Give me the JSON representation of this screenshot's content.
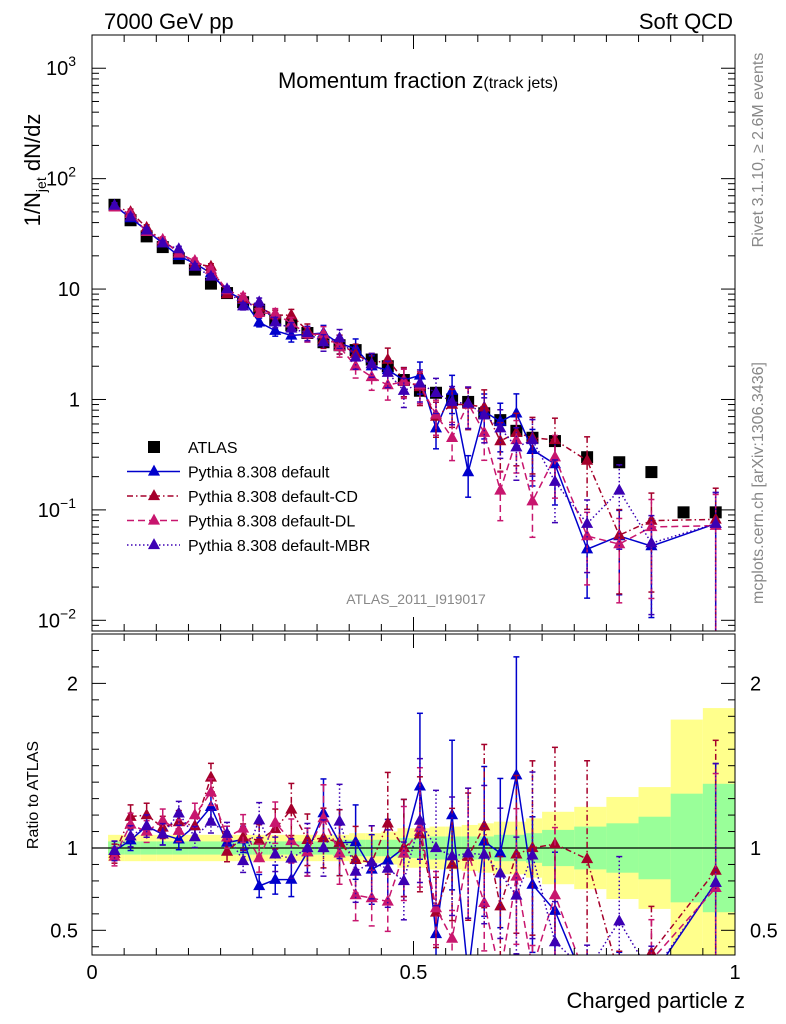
{
  "header": {
    "energy_label": "7000 GeV pp",
    "category_label": "Soft QCD",
    "right_side_rivet": "Rivet 3.1.10, ≥ 2.6M events",
    "right_side_source": "mcplots.cern.ch [arXiv:1306.3436]"
  },
  "chart_data": [
    {
      "type": "scatter",
      "panel": "main",
      "title": "Momentum fraction z(track jets)",
      "title_main": "Momentum fraction ",
      "title_z": "z",
      "title_sub": "(track jets)",
      "ylabel": "1/N_jet dN/dz",
      "ylabel_prefix": "1/N",
      "ylabel_sub": "jet",
      "ylabel_suffix": " dN/dz",
      "ylog": true,
      "ylim": [
        0.008,
        2000
      ],
      "xlim": [
        0,
        1
      ],
      "yticks": [
        {
          "v": 1000,
          "base": "10",
          "exp": "3"
        },
        {
          "v": 100,
          "base": "10",
          "exp": "2"
        },
        {
          "v": 10,
          "base": "10",
          "exp": ""
        },
        {
          "v": 1,
          "base": "1",
          "exp": ""
        },
        {
          "v": 0.1,
          "base": "10",
          "exp": "−1"
        },
        {
          "v": 0.01,
          "base": "10",
          "exp": "−2"
        }
      ],
      "watermark": "ATLAS_2011_I919017",
      "legend_position": "middle-left",
      "series": [
        {
          "name": "ATLAS",
          "color": "#000000",
          "style": "markers",
          "x": [
            0.035,
            0.06,
            0.085,
            0.11,
            0.135,
            0.16,
            0.185,
            0.21,
            0.235,
            0.26,
            0.285,
            0.31,
            0.335,
            0.36,
            0.385,
            0.41,
            0.435,
            0.46,
            0.485,
            0.51,
            0.535,
            0.56,
            0.585,
            0.61,
            0.635,
            0.66,
            0.685,
            0.72,
            0.77,
            0.82,
            0.87,
            0.92,
            0.97
          ],
          "y": [
            58,
            42,
            30,
            24,
            19,
            15,
            11.2,
            9.2,
            7.6,
            6.5,
            5.2,
            4.7,
            4.0,
            3.3,
            3.1,
            2.8,
            2.3,
            2.0,
            1.5,
            1.2,
            1.15,
            1.0,
            0.95,
            0.75,
            0.65,
            0.52,
            0.45,
            0.42,
            0.3,
            0.27,
            0.22,
            0.095,
            0.095
          ]
        },
        {
          "name": "Pythia 8.308 default",
          "color": "#0000cc",
          "style": "solid",
          "x": [
            0.035,
            0.06,
            0.085,
            0.11,
            0.135,
            0.16,
            0.185,
            0.21,
            0.235,
            0.26,
            0.285,
            0.31,
            0.335,
            0.36,
            0.385,
            0.41,
            0.435,
            0.46,
            0.485,
            0.51,
            0.535,
            0.56,
            0.585,
            0.61,
            0.635,
            0.66,
            0.685,
            0.72,
            0.77,
            0.82,
            0.87,
            0.97
          ],
          "y": [
            57,
            44,
            34,
            26,
            20,
            17,
            14,
            9.5,
            8.0,
            5.0,
            4.2,
            3.8,
            3.9,
            4.0,
            3.2,
            2.9,
            2.0,
            1.85,
            1.5,
            1.65,
            0.55,
            1.2,
            0.22,
            0.78,
            0.63,
            0.75,
            0.35,
            0.26,
            0.044,
            0.058,
            0.047,
            0.075
          ]
        },
        {
          "name": "Pythia 8.308 default-CD",
          "color": "#a5002b",
          "style": "dashdot",
          "x": [
            0.035,
            0.06,
            0.085,
            0.11,
            0.135,
            0.16,
            0.185,
            0.21,
            0.235,
            0.26,
            0.285,
            0.31,
            0.335,
            0.36,
            0.385,
            0.41,
            0.435,
            0.46,
            0.485,
            0.51,
            0.535,
            0.56,
            0.585,
            0.61,
            0.635,
            0.66,
            0.685,
            0.72,
            0.77,
            0.82,
            0.87,
            0.97
          ],
          "y": [
            56,
            50,
            36,
            27,
            22,
            17,
            16,
            9.0,
            8.1,
            6.8,
            5.8,
            5.8,
            4.2,
            3.5,
            3.2,
            2.6,
            2.1,
            2.3,
            1.5,
            1.3,
            0.7,
            0.9,
            0.9,
            0.85,
            0.42,
            0.5,
            0.45,
            0.43,
            0.28,
            0.059,
            0.08,
            0.082
          ]
        },
        {
          "name": "Pythia 8.308 default-DL",
          "color": "#c8166e",
          "style": "dashed",
          "x": [
            0.035,
            0.06,
            0.085,
            0.11,
            0.135,
            0.16,
            0.185,
            0.21,
            0.235,
            0.26,
            0.285,
            0.31,
            0.335,
            0.36,
            0.385,
            0.41,
            0.435,
            0.46,
            0.485,
            0.51,
            0.535,
            0.56,
            0.585,
            0.61,
            0.635,
            0.66,
            0.685,
            0.72,
            0.77,
            0.82,
            0.87,
            0.97
          ],
          "y": [
            55,
            48,
            33,
            28,
            21,
            18,
            15,
            9.8,
            8.5,
            6.1,
            6.0,
            4.9,
            3.9,
            3.9,
            3.0,
            2.0,
            1.6,
            1.35,
            1.45,
            1.35,
            0.73,
            0.45,
            0.92,
            0.5,
            0.15,
            0.43,
            0.12,
            0.3,
            0.058,
            0.049,
            0.07,
            0.072
          ]
        },
        {
          "name": "Pythia 8.308 default-MBR",
          "color": "#3c00b4",
          "style": "dotted",
          "x": [
            0.035,
            0.06,
            0.085,
            0.11,
            0.135,
            0.16,
            0.185,
            0.21,
            0.235,
            0.26,
            0.285,
            0.31,
            0.335,
            0.36,
            0.385,
            0.41,
            0.435,
            0.46,
            0.485,
            0.51,
            0.535,
            0.56,
            0.585,
            0.61,
            0.635,
            0.66,
            0.685,
            0.72,
            0.77,
            0.82,
            0.87,
            0.97
          ],
          "y": [
            57,
            45,
            34,
            26,
            23,
            16,
            13,
            10,
            7.0,
            7.6,
            5.0,
            4.4,
            4.0,
            3.3,
            3.6,
            2.4,
            2.1,
            1.75,
            1.2,
            1.4,
            1.15,
            0.95,
            0.92,
            0.72,
            0.55,
            0.37,
            0.43,
            0.18,
            0.075,
            0.15,
            0.05,
            0.075
          ]
        }
      ]
    },
    {
      "type": "scatter",
      "panel": "ratio",
      "ylabel": "Ratio to ATLAS",
      "xlabel": "Charged particle z",
      "xlim": [
        0,
        1
      ],
      "ylim": [
        0.35,
        2.3
      ],
      "yticks": [
        "0.5",
        "1",
        "2"
      ],
      "xticks": [
        "0",
        "0.5",
        "1"
      ],
      "reference_line": 1.0,
      "uncertainty_bands": {
        "inner_color": "#99ff99",
        "outer_color": "#ffff8c",
        "bins": [
          {
            "x0": 0.025,
            "x1": 0.05,
            "inner": 0.04,
            "outer": 0.08
          },
          {
            "x0": 0.05,
            "x1": 0.075,
            "inner": 0.04,
            "outer": 0.08
          },
          {
            "x0": 0.075,
            "x1": 0.1,
            "inner": 0.04,
            "outer": 0.08
          },
          {
            "x0": 0.1,
            "x1": 0.125,
            "inner": 0.04,
            "outer": 0.08
          },
          {
            "x0": 0.125,
            "x1": 0.15,
            "inner": 0.04,
            "outer": 0.08
          },
          {
            "x0": 0.15,
            "x1": 0.175,
            "inner": 0.04,
            "outer": 0.08
          },
          {
            "x0": 0.175,
            "x1": 0.2,
            "inner": 0.04,
            "outer": 0.08
          },
          {
            "x0": 0.2,
            "x1": 0.225,
            "inner": 0.04,
            "outer": 0.08
          },
          {
            "x0": 0.225,
            "x1": 0.25,
            "inner": 0.04,
            "outer": 0.08
          },
          {
            "x0": 0.25,
            "x1": 0.275,
            "inner": 0.04,
            "outer": 0.08
          },
          {
            "x0": 0.275,
            "x1": 0.3,
            "inner": 0.04,
            "outer": 0.08
          },
          {
            "x0": 0.3,
            "x1": 0.325,
            "inner": 0.04,
            "outer": 0.08
          },
          {
            "x0": 0.325,
            "x1": 0.35,
            "inner": 0.04,
            "outer": 0.08
          },
          {
            "x0": 0.35,
            "x1": 0.375,
            "inner": 0.04,
            "outer": 0.08
          },
          {
            "x0": 0.375,
            "x1": 0.4,
            "inner": 0.05,
            "outer": 0.08
          },
          {
            "x0": 0.4,
            "x1": 0.425,
            "inner": 0.05,
            "outer": 0.09
          },
          {
            "x0": 0.425,
            "x1": 0.45,
            "inner": 0.05,
            "outer": 0.09
          },
          {
            "x0": 0.45,
            "x1": 0.475,
            "inner": 0.05,
            "outer": 0.1
          },
          {
            "x0": 0.475,
            "x1": 0.5,
            "inner": 0.06,
            "outer": 0.12
          },
          {
            "x0": 0.5,
            "x1": 0.525,
            "inner": 0.06,
            "outer": 0.12
          },
          {
            "x0": 0.525,
            "x1": 0.55,
            "inner": 0.07,
            "outer": 0.13
          },
          {
            "x0": 0.55,
            "x1": 0.575,
            "inner": 0.07,
            "outer": 0.13
          },
          {
            "x0": 0.575,
            "x1": 0.6,
            "inner": 0.07,
            "outer": 0.14
          },
          {
            "x0": 0.6,
            "x1": 0.625,
            "inner": 0.07,
            "outer": 0.15
          },
          {
            "x0": 0.625,
            "x1": 0.65,
            "inner": 0.08,
            "outer": 0.16
          },
          {
            "x0": 0.65,
            "x1": 0.675,
            "inner": 0.08,
            "outer": 0.16
          },
          {
            "x0": 0.675,
            "x1": 0.7,
            "inner": 0.09,
            "outer": 0.18
          },
          {
            "x0": 0.7,
            "x1": 0.75,
            "inner": 0.11,
            "outer": 0.22
          },
          {
            "x0": 0.75,
            "x1": 0.8,
            "inner": 0.13,
            "outer": 0.25
          },
          {
            "x0": 0.8,
            "x1": 0.85,
            "inner": 0.15,
            "outer": 0.31
          },
          {
            "x0": 0.85,
            "x1": 0.9,
            "inner": 0.19,
            "outer": 0.37
          },
          {
            "x0": 0.9,
            "x1": 0.95,
            "inner": 0.33,
            "outer": 0.78
          },
          {
            "x0": 0.95,
            "x1": 1.0,
            "inner": 0.39,
            "outer": 0.85
          }
        ]
      }
    }
  ]
}
